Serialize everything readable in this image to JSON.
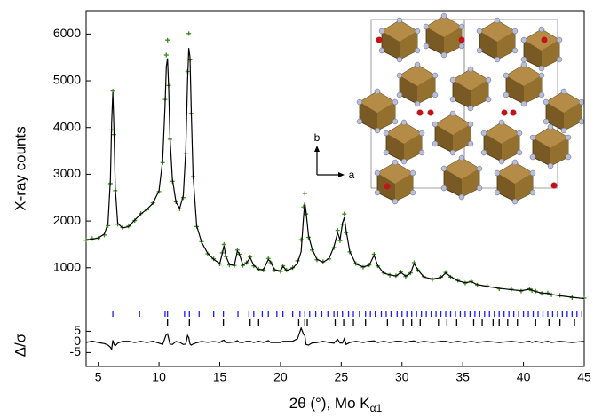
{
  "chart_data": [
    {
      "type": "line",
      "ylabel": "X-ray counts",
      "xlim": [
        4,
        45
      ],
      "ylim": [
        -200,
        6500
      ],
      "yticks": [
        1000,
        2000,
        3000,
        4000,
        5000,
        6000
      ],
      "x": [
        4,
        4.5,
        5,
        5.5,
        5.8,
        6.0,
        6.1,
        6.2,
        6.3,
        6.4,
        6.6,
        7,
        7.5,
        8,
        8.5,
        9,
        9.5,
        10,
        10.3,
        10.5,
        10.6,
        10.7,
        10.8,
        10.9,
        11.1,
        11.4,
        11.7,
        12,
        12.2,
        12.35,
        12.45,
        12.55,
        12.65,
        12.8,
        13.1,
        13.5,
        14,
        14.5,
        15,
        15.2,
        15.35,
        15.5,
        15.8,
        16.2,
        16.45,
        16.6,
        16.9,
        17.2,
        17.5,
        17.8,
        18.2,
        18.6,
        19,
        19.2,
        19.5,
        20,
        20.2,
        20.5,
        21,
        21.4,
        21.7,
        21.9,
        22,
        22.1,
        22.3,
        22.6,
        23,
        23.5,
        24,
        24.4,
        24.7,
        24.9,
        25.1,
        25.25,
        25.4,
        25.7,
        26.2,
        26.8,
        27.3,
        27.7,
        28,
        28.5,
        29,
        29.5,
        29.9,
        30.3,
        30.7,
        31,
        31.3,
        31.8,
        32.5,
        33.2,
        33.6,
        34,
        34.6,
        35.2,
        35.7,
        36.2,
        37,
        38,
        39,
        39.8,
        40.5,
        40.7,
        41,
        41.5,
        42,
        42.3,
        43,
        44,
        45
      ],
      "series": [
        {
          "mode": "markers",
          "color": "#3c8c1e",
          "values": [
            1590,
            1625,
            1630,
            1700,
            1900,
            2800,
            3950,
            4780,
            3850,
            2650,
            1930,
            1860,
            1890,
            2010,
            2160,
            2240,
            2390,
            2630,
            3250,
            4600,
            5550,
            5870,
            4900,
            3750,
            2850,
            2410,
            2260,
            2500,
            3450,
            5200,
            6010,
            5450,
            4300,
            2950,
            1880,
            1560,
            1300,
            1190,
            1080,
            1320,
            1500,
            1240,
            1060,
            1050,
            1380,
            1290,
            1050,
            1110,
            1230,
            1040,
            970,
            950,
            1200,
            1110,
            950,
            920,
            1040,
            950,
            1000,
            1150,
            1600,
            2300,
            2590,
            2150,
            1650,
            1380,
            1170,
            1130,
            1190,
            1430,
            1800,
            1580,
            1930,
            2150,
            1750,
            1340,
            1090,
            1010,
            1060,
            1290,
            1040,
            890,
            840,
            830,
            910,
            810,
            890,
            1110,
            950,
            810,
            750,
            800,
            900,
            800,
            730,
            670,
            710,
            630,
            610,
            550,
            540,
            500,
            550,
            510,
            500,
            450,
            460,
            420,
            410,
            360,
            350
          ]
        },
        {
          "mode": "line",
          "color": "#000000",
          "values": [
            1600,
            1610,
            1640,
            1720,
            1950,
            2900,
            4100,
            4750,
            3900,
            2700,
            1950,
            1850,
            1880,
            2020,
            2150,
            2250,
            2380,
            2650,
            3300,
            4500,
            5300,
            5480,
            4800,
            3800,
            2900,
            2400,
            2270,
            2550,
            3500,
            5000,
            5700,
            5500,
            4400,
            3000,
            1900,
            1550,
            1310,
            1180,
            1090,
            1300,
            1470,
            1250,
            1070,
            1050,
            1360,
            1300,
            1060,
            1100,
            1220,
            1050,
            960,
            960,
            1180,
            1120,
            960,
            930,
            1030,
            940,
            990,
            1100,
            1350,
            2100,
            2400,
            2200,
            1700,
            1400,
            1180,
            1120,
            1200,
            1450,
            1750,
            1600,
            1950,
            2080,
            1800,
            1350,
            1080,
            1020,
            1050,
            1270,
            1050,
            880,
            850,
            820,
            900,
            820,
            880,
            1090,
            960,
            800,
            760,
            790,
            890,
            810,
            720,
            680,
            700,
            640,
            600,
            560,
            530,
            510,
            540,
            520,
            490,
            460,
            450,
            430,
            400,
            370,
            340
          ]
        }
      ],
      "reflections": [
        {
          "color": "#1a1aff",
          "x": [
            6.2,
            8.4,
            10.5,
            10.7,
            12.1,
            12.5,
            13.3,
            14.5,
            15.3,
            16.5,
            17.4,
            17.8,
            18.5,
            19.0,
            19.7,
            20.2,
            21.0,
            21.6,
            22.0,
            22.4,
            22.9,
            23.4,
            23.9,
            24.4,
            24.7,
            25.1,
            25.6,
            26.0,
            26.5,
            27.0,
            27.4,
            27.8,
            28.3,
            28.7,
            29.1,
            29.6,
            30.0,
            30.4,
            30.8,
            31.2,
            31.6,
            32.0,
            32.4,
            32.8,
            33.2,
            33.6,
            34.0,
            34.4,
            34.8,
            35.2,
            35.6,
            36.0,
            36.4,
            36.8,
            37.2,
            37.6,
            38.0,
            38.4,
            38.8,
            39.2,
            39.6,
            40.0,
            40.4,
            40.8,
            41.2,
            41.6,
            42.0,
            42.4,
            42.8,
            43.2,
            43.6,
            44.0,
            44.4,
            44.8
          ]
        },
        {
          "color": "#000000",
          "x": [
            10.7,
            12.5,
            15.3,
            17.5,
            18.2,
            21.5,
            22.0,
            22.2,
            24.5,
            25.2,
            26.0,
            27.0,
            28.8,
            30.1,
            30.8,
            31.5,
            33.0,
            33.7,
            34.5,
            35.9,
            36.6,
            37.5,
            38.0,
            38.7,
            39.5,
            41.0,
            42.1,
            43.0,
            44.2
          ]
        }
      ]
    },
    {
      "type": "line",
      "ylabel": "Δ/σ",
      "xlabel": "2θ (°), Mo K",
      "xlabel_subscript": "α1",
      "xlim": [
        4,
        45
      ],
      "xticks": [
        5,
        10,
        15,
        20,
        25,
        30,
        35,
        40,
        45
      ],
      "ylim": [
        -11.5,
        8.5
      ],
      "yticks": [
        5,
        0,
        -5
      ],
      "x": [
        4,
        4.5,
        5,
        5.5,
        5.8,
        6.0,
        6.1,
        6.2,
        6.3,
        6.4,
        6.6,
        7,
        7.5,
        8,
        8.5,
        9,
        9.5,
        10,
        10.3,
        10.5,
        10.6,
        10.7,
        10.8,
        10.9,
        11.1,
        11.4,
        11.7,
        12,
        12.2,
        12.35,
        12.45,
        12.55,
        12.65,
        12.8,
        13.1,
        13.5,
        14,
        14.5,
        15,
        15.2,
        15.35,
        15.5,
        15.8,
        16.2,
        16.45,
        16.6,
        16.9,
        17.2,
        17.5,
        17.8,
        18.2,
        18.6,
        19,
        19.2,
        19.5,
        20,
        20.2,
        20.5,
        21,
        21.4,
        21.7,
        21.9,
        22,
        22.1,
        22.3,
        22.6,
        23,
        23.5,
        24,
        24.4,
        24.7,
        24.9,
        25.1,
        25.25,
        25.4,
        25.7,
        26.2,
        26.8,
        27.3,
        27.7,
        28,
        28.5,
        29,
        29.5,
        29.9,
        30.3,
        30.7,
        31,
        31.3,
        31.8,
        32.5,
        33.2,
        33.6,
        34,
        34.6,
        35.2,
        35.7,
        36.2,
        37,
        38,
        39,
        39.8,
        40.5,
        40.7,
        41,
        41.5,
        42,
        42.3,
        43,
        44,
        45
      ],
      "series": [
        {
          "mode": "line",
          "color": "#000000",
          "values": [
            -0.3,
            0.4,
            -0.3,
            -0.8,
            -1.5,
            -2.5,
            -3.5,
            0.8,
            -1.2,
            -1.8,
            -0.6,
            0.3,
            0.3,
            -0.3,
            0.3,
            -0.3,
            0.3,
            -0.6,
            -1.2,
            2.0,
            3.5,
            3.8,
            1.5,
            -1.0,
            -1.2,
            0.2,
            -0.2,
            -1.2,
            -1.0,
            3.0,
            2.0,
            -1.0,
            -1.5,
            -1.0,
            -0.4,
            0.2,
            -0.2,
            0.2,
            -0.3,
            0.5,
            0.8,
            -0.3,
            -0.3,
            0,
            0.6,
            -0.2,
            -0.3,
            0.3,
            0.3,
            -0.3,
            0.3,
            -0.3,
            0.6,
            -0.3,
            -0.3,
            -0.3,
            0.3,
            0.3,
            0.3,
            1.5,
            6.5,
            3.5,
            3.0,
            -1.2,
            -1.5,
            -0.5,
            -0.3,
            0.3,
            -0.3,
            -0.6,
            1.2,
            -0.5,
            -0.5,
            1.5,
            -1.2,
            -0.3,
            0.3,
            -0.3,
            0.3,
            0.5,
            -0.3,
            0.3,
            -0.3,
            0.3,
            0.3,
            -0.3,
            0.3,
            0.5,
            -0.3,
            0.3,
            -0.3,
            0.3,
            0.3,
            -0.3,
            0.3,
            -0.3,
            0.3,
            -0.3,
            0.3,
            -0.3,
            0.3,
            -0.3,
            0.3,
            -0.3,
            0.3,
            -0.3,
            0.3,
            -0.3,
            0.3,
            -0.3,
            0.3
          ]
        }
      ]
    }
  ],
  "inset": {
    "axis_labels": [
      "b",
      "a"
    ]
  }
}
